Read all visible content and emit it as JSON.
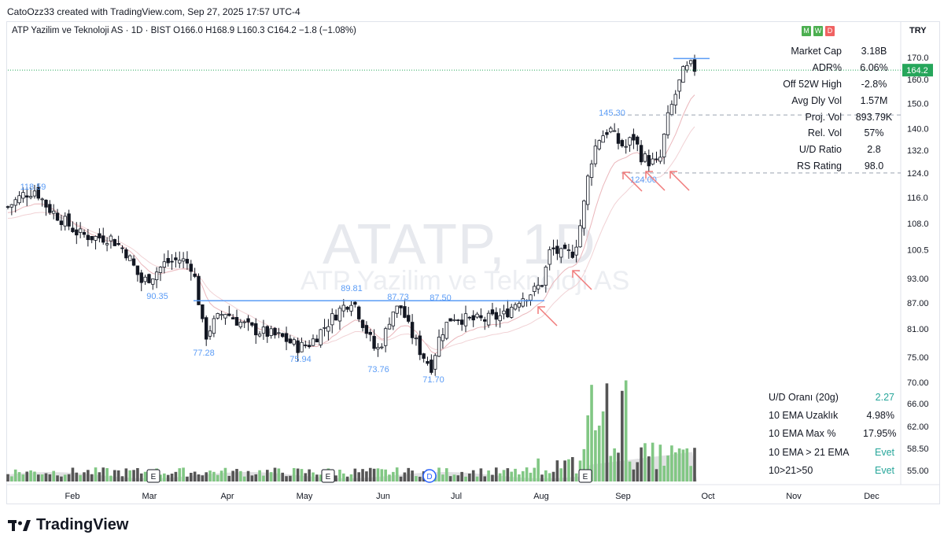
{
  "header": {
    "credit": "CatoOzz33 created with TradingView.com, Sep 27, 2025 17:57 UTC-4"
  },
  "symbol": {
    "info": "ATP Yazilim ve Teknoloji AS · 1D · BIST  O166.0  H168.9  L160.3  C164.2  −1.8 (−1.08%)"
  },
  "badges": [
    {
      "label": "M",
      "color": "#4caf50"
    },
    {
      "label": "W",
      "color": "#4caf50"
    },
    {
      "label": "D",
      "color": "#f06262"
    }
  ],
  "currency": "TRY",
  "watermark": {
    "ticker": "ATATP, 1D",
    "name": "ATP Yazilim ve Teknoloji AS"
  },
  "stats": [
    {
      "label": "Market Cap",
      "value": "3.18B"
    },
    {
      "label": "ADR%",
      "value": "6.06%"
    },
    {
      "label": "Off 52W High",
      "value": "-2.8%"
    },
    {
      "label": "Avg Dly Vol",
      "value": "1.57M"
    },
    {
      "label": "Proj. Vol",
      "value": "893.79K"
    },
    {
      "label": "Rel. Vol",
      "value": "57%"
    },
    {
      "label": "U/D Ratio",
      "value": "2.8"
    },
    {
      "label": "RS Rating",
      "value": "98.0"
    }
  ],
  "bottom_stats": [
    {
      "label": "U/D Oranı (20g)",
      "value": "2.27"
    },
    {
      "label": "10 EMA Uzaklık",
      "value": "4.98%"
    },
    {
      "label": "10 EMA Max %",
      "value": "17.95%"
    },
    {
      "label": "10 EMA > 21 EMA",
      "value": "Evet"
    },
    {
      "label": "10>21>50",
      "value": "Evet"
    }
  ],
  "brand": {
    "logo_text": "TradingView"
  },
  "colors": {
    "up": "#6b6b6b",
    "down": "#131722",
    "ma": "#e8b4b8",
    "level_line": "#5b9cf6",
    "arrow": "#f07a7a",
    "vol_up": "#81c784",
    "vol_down": "#555555",
    "accent_green": "#26a69a",
    "last_price_bg": "#26a65b"
  },
  "chart_data": {
    "type": "candlestick",
    "symbol": "ATATP",
    "interval": "1D",
    "ohlc_last": {
      "open": 166.0,
      "high": 168.9,
      "low": 160.3,
      "close": 164.2,
      "change": -1.8,
      "change_pct": -1.08
    },
    "last_price_label": "164.2",
    "price_axis_ticks": [
      170.0,
      160.0,
      150.0,
      140.0,
      132.0,
      124.0,
      116.0,
      108.0,
      100.5,
      93.0,
      87.0,
      81.0,
      75.0,
      70.0,
      66.0,
      62.0,
      58.5,
      55.0
    ],
    "price_axis_labels": [
      "170.0",
      "160.0",
      "150.0",
      "140.0",
      "132.0",
      "124.0",
      "116.0",
      "108.0",
      "100.5",
      "93.00",
      "87.00",
      "81.00",
      "75.00",
      "70.00",
      "66.00",
      "62.00",
      "58.50",
      "55.00"
    ],
    "log_scale": true,
    "time_axis_labels": [
      "Feb",
      "Mar",
      "Apr",
      "May",
      "Jun",
      "Jul",
      "Aug",
      "Sep",
      "Oct",
      "Nov",
      "Dec"
    ],
    "price_annotations": [
      {
        "text": "118.59",
        "price": 118.59,
        "date": "Jan"
      },
      {
        "text": "90.35",
        "price": 90.35,
        "date": "Mar"
      },
      {
        "text": "77.28",
        "price": 77.28,
        "date": "Apr"
      },
      {
        "text": "75.94",
        "price": 75.94,
        "date": "May"
      },
      {
        "text": "89.81",
        "price": 89.81,
        "date": "May"
      },
      {
        "text": "73.76",
        "price": 73.76,
        "date": "Jun"
      },
      {
        "text": "87.73",
        "price": 87.73,
        "date": "Jun"
      },
      {
        "text": "71.70",
        "price": 71.7,
        "date": "Jun"
      },
      {
        "text": "87.50",
        "price": 87.5,
        "date": "Jul"
      },
      {
        "text": "145.30",
        "price": 145.3,
        "date": "Sep"
      },
      {
        "text": "124.00",
        "price": 124.0,
        "date": "Sep"
      }
    ],
    "horizontal_levels": [
      87.5,
      124.0,
      145.3,
      169.5
    ],
    "event_markers": [
      {
        "label": "E",
        "date": "Mar"
      },
      {
        "label": "E",
        "date": "May"
      },
      {
        "label": "D",
        "date": "Jun"
      },
      {
        "label": "E",
        "date": "Aug"
      }
    ],
    "arrow_markers": [
      "Jul",
      "Aug",
      "Sep",
      "Sep",
      "Sep"
    ],
    "grid": false
  }
}
